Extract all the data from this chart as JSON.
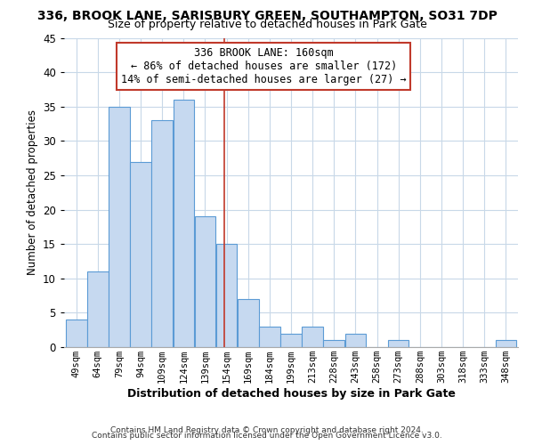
{
  "title1": "336, BROOK LANE, SARISBURY GREEN, SOUTHAMPTON, SO31 7DP",
  "title2": "Size of property relative to detached houses in Park Gate",
  "xlabel": "Distribution of detached houses by size in Park Gate",
  "ylabel": "Number of detached properties",
  "bar_labels": [
    "49sqm",
    "64sqm",
    "79sqm",
    "94sqm",
    "109sqm",
    "124sqm",
    "139sqm",
    "154sqm",
    "169sqm",
    "184sqm",
    "199sqm",
    "213sqm",
    "228sqm",
    "243sqm",
    "258sqm",
    "273sqm",
    "288sqm",
    "303sqm",
    "318sqm",
    "333sqm",
    "348sqm"
  ],
  "bar_values": [
    4,
    11,
    35,
    27,
    33,
    36,
    19,
    15,
    7,
    3,
    2,
    3,
    1,
    2,
    0,
    1,
    0,
    0,
    0,
    0,
    1
  ],
  "bar_color": "#c6d9f0",
  "bar_edge_color": "#5b9bd5",
  "annotation_line1": "336 BROOK LANE: 160sqm",
  "annotation_line2": "← 86% of detached houses are smaller (172)",
  "annotation_line3": "14% of semi-detached houses are larger (27) →",
  "annotation_box_edge_color": "#c0392b",
  "annotation_text_fontsize": 8.5,
  "property_line_x": 160,
  "ylim": [
    0,
    45
  ],
  "yticks": [
    0,
    5,
    10,
    15,
    20,
    25,
    30,
    35,
    40,
    45
  ],
  "footer1": "Contains HM Land Registry data © Crown copyright and database right 2024.",
  "footer2": "Contains public sector information licensed under the Open Government Licence v3.0.",
  "background_color": "#ffffff",
  "grid_color": "#c8d8e8",
  "title1_fontsize": 10,
  "title2_fontsize": 9,
  "xlabel_fontsize": 9,
  "ylabel_fontsize": 8.5,
  "xtick_fontsize": 7.5,
  "ytick_fontsize": 8.5
}
